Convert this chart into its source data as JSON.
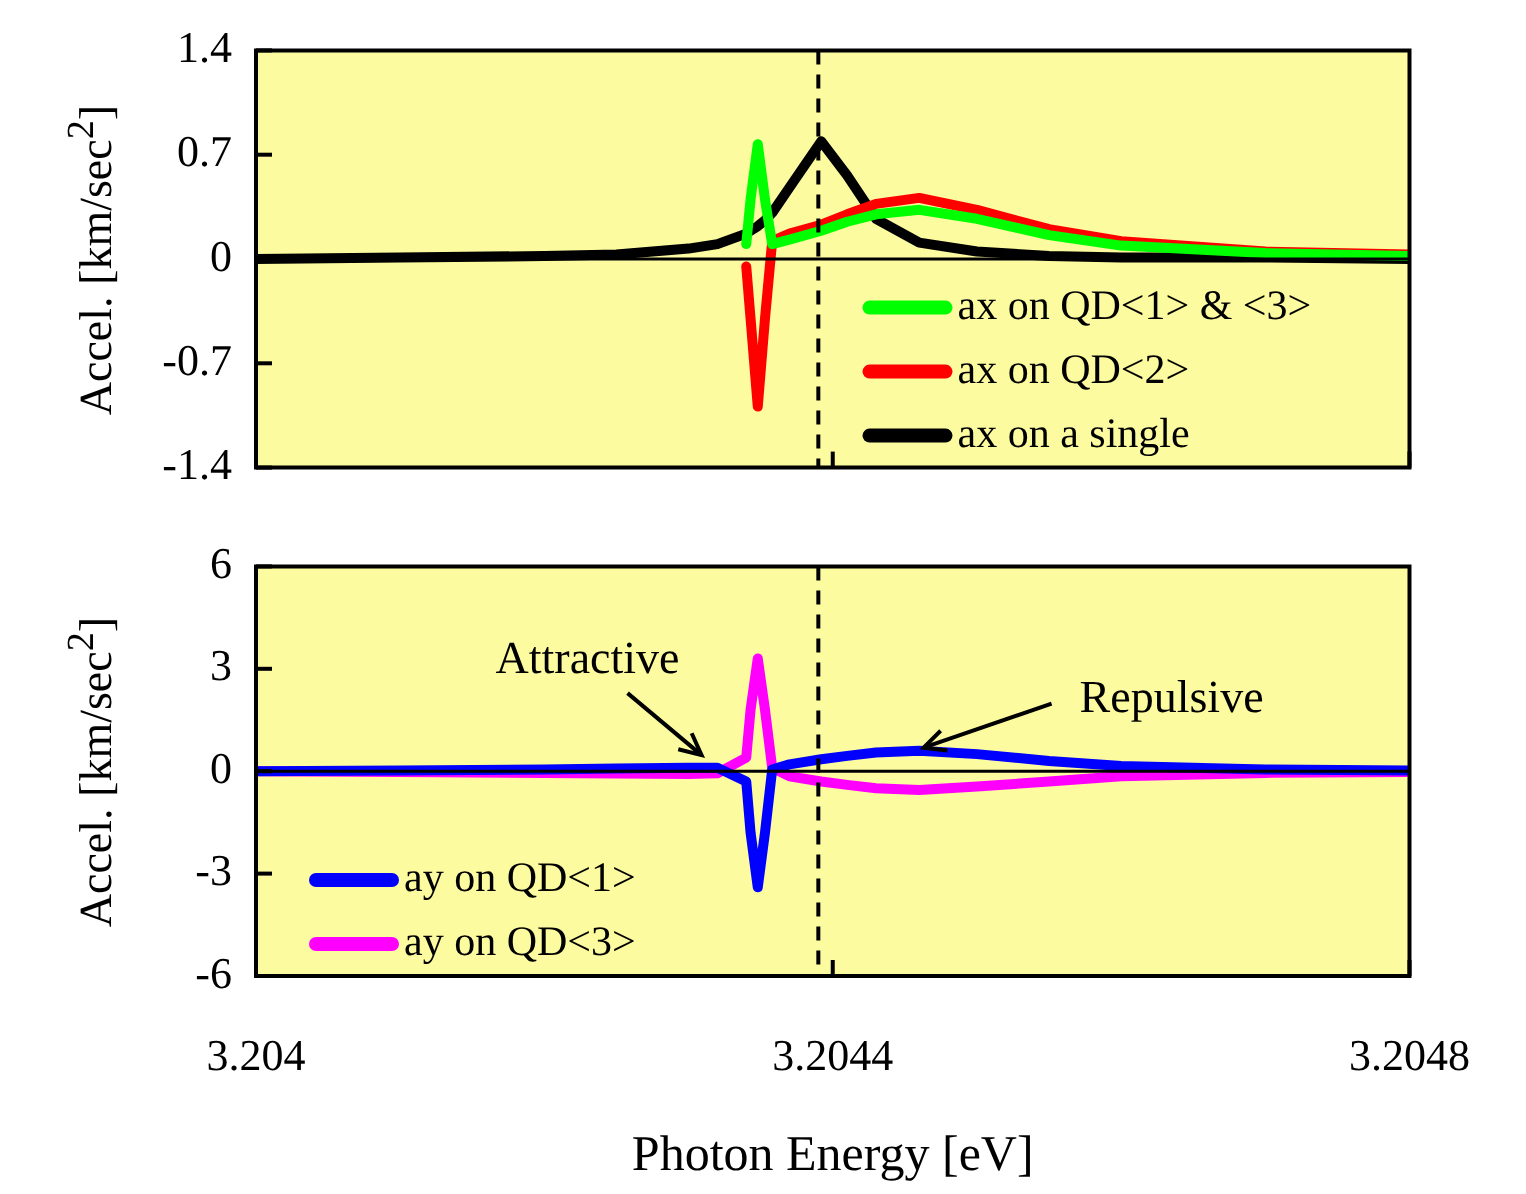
{
  "chart_data": [
    {
      "type": "line",
      "ylabel": "Accel. [km/sec$^{2}$]",
      "xlim": [
        3.204,
        3.2048
      ],
      "xticks": [
        3.204,
        3.2044,
        3.2048
      ],
      "ylim": [
        -1.4,
        1.4
      ],
      "yticks": [
        -1.4,
        -0.7,
        0,
        0.7,
        1.4
      ],
      "tick_labels": "y",
      "legend": "bottom right",
      "x": [
        3.204,
        3.2041,
        3.2042,
        3.20425,
        3.2043,
        3.20432,
        3.20434,
        3.204343,
        3.204348,
        3.204353,
        3.204358,
        3.20437,
        3.204392,
        3.20441,
        3.20443,
        3.20446,
        3.2045,
        3.20455,
        3.2046,
        3.2047,
        3.2048
      ],
      "series": [
        {
          "name": "ax on QD<1> & <3>",
          "color": "#00ff00",
          "values": [
            null,
            null,
            null,
            null,
            null,
            null,
            0.1,
            0.4,
            0.77,
            0.4,
            0.1,
            0.13,
            0.19,
            0.25,
            0.3,
            0.33,
            0.27,
            0.16,
            0.09,
            0.04,
            0.02
          ]
        },
        {
          "name": "ax on QD<2>",
          "color": "#ff0000",
          "values": [
            null,
            null,
            null,
            null,
            null,
            null,
            -0.05,
            -0.4,
            -0.99,
            -0.4,
            0.12,
            0.17,
            0.23,
            0.3,
            0.37,
            0.41,
            0.33,
            0.2,
            0.12,
            0.05,
            0.03
          ]
        },
        {
          "name": "ax on a single",
          "color": "#000000",
          "values": [
            0,
            0.01,
            0.02,
            0.03,
            0.07,
            0.1,
            0.17,
            0.19,
            0.22,
            0.26,
            0.31,
            0.48,
            0.79,
            0.56,
            0.27,
            0.11,
            0.05,
            0.02,
            0.01,
            0.01,
            0
          ]
        }
      ],
      "ref_lines": [
        {
          "axis": "y",
          "value": 0,
          "color": "#000000",
          "line_style": "solid"
        },
        {
          "axis": "x",
          "value": 3.20439,
          "color": "#000000",
          "line_style": "dashed"
        }
      ]
    },
    {
      "type": "line",
      "ylabel": "Accel. [km/sec$^{2}$]",
      "xlabel": "Photon Energy [eV]",
      "xlim": [
        3.204,
        3.2048
      ],
      "xticks": [
        3.204,
        3.2044,
        3.2048
      ],
      "ylim": [
        -6,
        6
      ],
      "yticks": [
        -6,
        -3,
        0,
        3,
        6
      ],
      "legend": "bottom left",
      "x": [
        3.204,
        3.2041,
        3.2042,
        3.20425,
        3.2043,
        3.20432,
        3.20434,
        3.204343,
        3.204348,
        3.204353,
        3.204358,
        3.20437,
        3.204392,
        3.20441,
        3.20443,
        3.20446,
        3.2045,
        3.20455,
        3.2046,
        3.2047,
        3.2048
      ],
      "series": [
        {
          "name": "ay on QD<1>",
          "color": "#0000ff",
          "values": [
            0,
            0.02,
            0.05,
            0.08,
            0.1,
            0.1,
            -0.3,
            -1.8,
            -3.4,
            -1.8,
            0.05,
            0.2,
            0.35,
            0.45,
            0.55,
            0.6,
            0.5,
            0.3,
            0.15,
            0.05,
            0.02
          ]
        },
        {
          "name": "ay on QD<3>",
          "color": "#ff00ff",
          "values": [
            0,
            -0.02,
            -0.05,
            -0.07,
            -0.08,
            -0.06,
            0.4,
            1.8,
            3.3,
            1.8,
            0.1,
            -0.15,
            -0.3,
            -0.4,
            -0.5,
            -0.55,
            -0.45,
            -0.3,
            -0.15,
            -0.05,
            -0.02
          ]
        }
      ],
      "ref_lines": [
        {
          "axis": "y",
          "value": 0,
          "color": "#000000",
          "line_style": "solid"
        },
        {
          "axis": "x",
          "value": 3.20439,
          "color": "#000000",
          "line_style": "dashed"
        }
      ],
      "annotations": [
        {
          "text": "Attractive",
          "x": 3.204309,
          "y": 0.47
        },
        {
          "text": "Repulsive",
          "x": 3.204463,
          "y": 0.69
        }
      ]
    }
  ]
}
